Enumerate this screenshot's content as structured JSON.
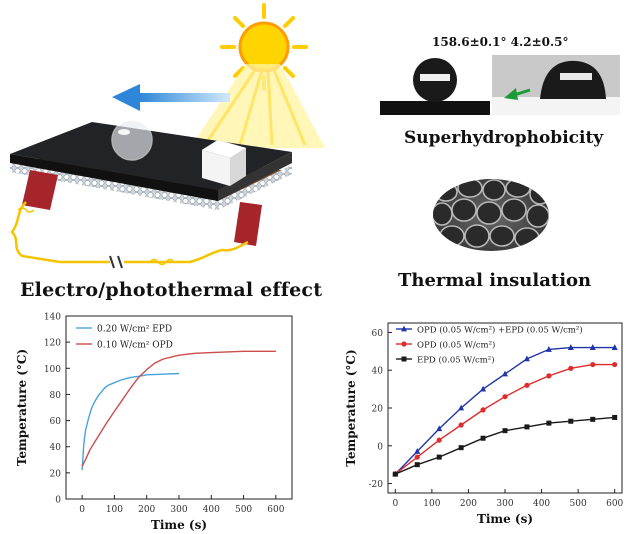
{
  "illustration": {
    "electro_label": "Electro/photothermal effect",
    "superhydrophobicity_label": "Superhydrophobicity",
    "thermal_insulation_label": "Thermal insulation",
    "contact_angles": "158.6±0.1° 4.2±0.5°",
    "sun_color": "#ffd400",
    "arrow_color": "#4aa8e8",
    "electrode_color": "#a5252b"
  },
  "chart_data": [
    {
      "type": "line",
      "xlabel": "Time (s)",
      "ylabel": "Temperature (°C)",
      "xlim": [
        -50,
        650
      ],
      "ylim": [
        0,
        140
      ],
      "x_ticks": [
        0,
        100,
        200,
        300,
        400,
        500,
        600
      ],
      "y_ticks": [
        0,
        20,
        40,
        60,
        80,
        100,
        120,
        140
      ],
      "legend_position": "top-left",
      "grid": false,
      "series": [
        {
          "name": "0.20 W/cm² EPD",
          "color": "#4aa3d8",
          "x": [
            0,
            5,
            10,
            20,
            30,
            40,
            50,
            60,
            70,
            80,
            100,
            120,
            150,
            180,
            200,
            250,
            300
          ],
          "y": [
            22,
            42,
            52,
            62,
            70,
            75,
            79,
            82,
            85,
            87,
            89,
            91,
            93,
            94,
            95,
            95.5,
            96
          ]
        },
        {
          "name": "0.10 W/cm² OPD",
          "color": "#cc4b4b",
          "x": [
            0,
            10,
            25,
            50,
            75,
            100,
            125,
            150,
            175,
            200,
            225,
            250,
            300,
            350,
            400,
            450,
            500,
            550,
            600
          ],
          "y": [
            25,
            30,
            38,
            48,
            58,
            67,
            76,
            85,
            93,
            99,
            104,
            107,
            110,
            111.5,
            112,
            112.5,
            113,
            113,
            113
          ]
        }
      ]
    },
    {
      "type": "line",
      "xlabel": "Time (s)",
      "ylabel": "Temperature (°C)",
      "xlim": [
        -20,
        620
      ],
      "ylim": [
        -25,
        65
      ],
      "x_ticks": [
        0,
        100,
        200,
        300,
        400,
        500,
        600
      ],
      "y_ticks": [
        -20,
        0,
        20,
        40,
        60
      ],
      "legend_position": "top-left",
      "grid": false,
      "series": [
        {
          "name": "OPD (0.05 W/cm²) +EPD (0.05 W/cm²)",
          "color": "#1f35a8",
          "marker": "triangle",
          "x": [
            0,
            60,
            120,
            180,
            240,
            300,
            360,
            420,
            480,
            540,
            600
          ],
          "y": [
            -15,
            -3,
            9,
            20,
            30,
            38,
            46,
            51,
            52,
            52,
            52
          ]
        },
        {
          "name": "OPD (0.05 W/cm²)",
          "color": "#e02c2c",
          "marker": "circle",
          "x": [
            0,
            60,
            120,
            180,
            240,
            300,
            360,
            420,
            480,
            540,
            600
          ],
          "y": [
            -15,
            -6,
            3,
            11,
            19,
            26,
            32,
            37,
            41,
            43,
            43
          ]
        },
        {
          "name": "EPD (0.05 W/cm²)",
          "color": "#1a1a1a",
          "marker": "square",
          "x": [
            0,
            60,
            120,
            180,
            240,
            300,
            360,
            420,
            480,
            540,
            600
          ],
          "y": [
            -15,
            -10,
            -6,
            -1,
            4,
            8,
            10,
            12,
            13,
            14,
            15
          ]
        }
      ]
    }
  ]
}
